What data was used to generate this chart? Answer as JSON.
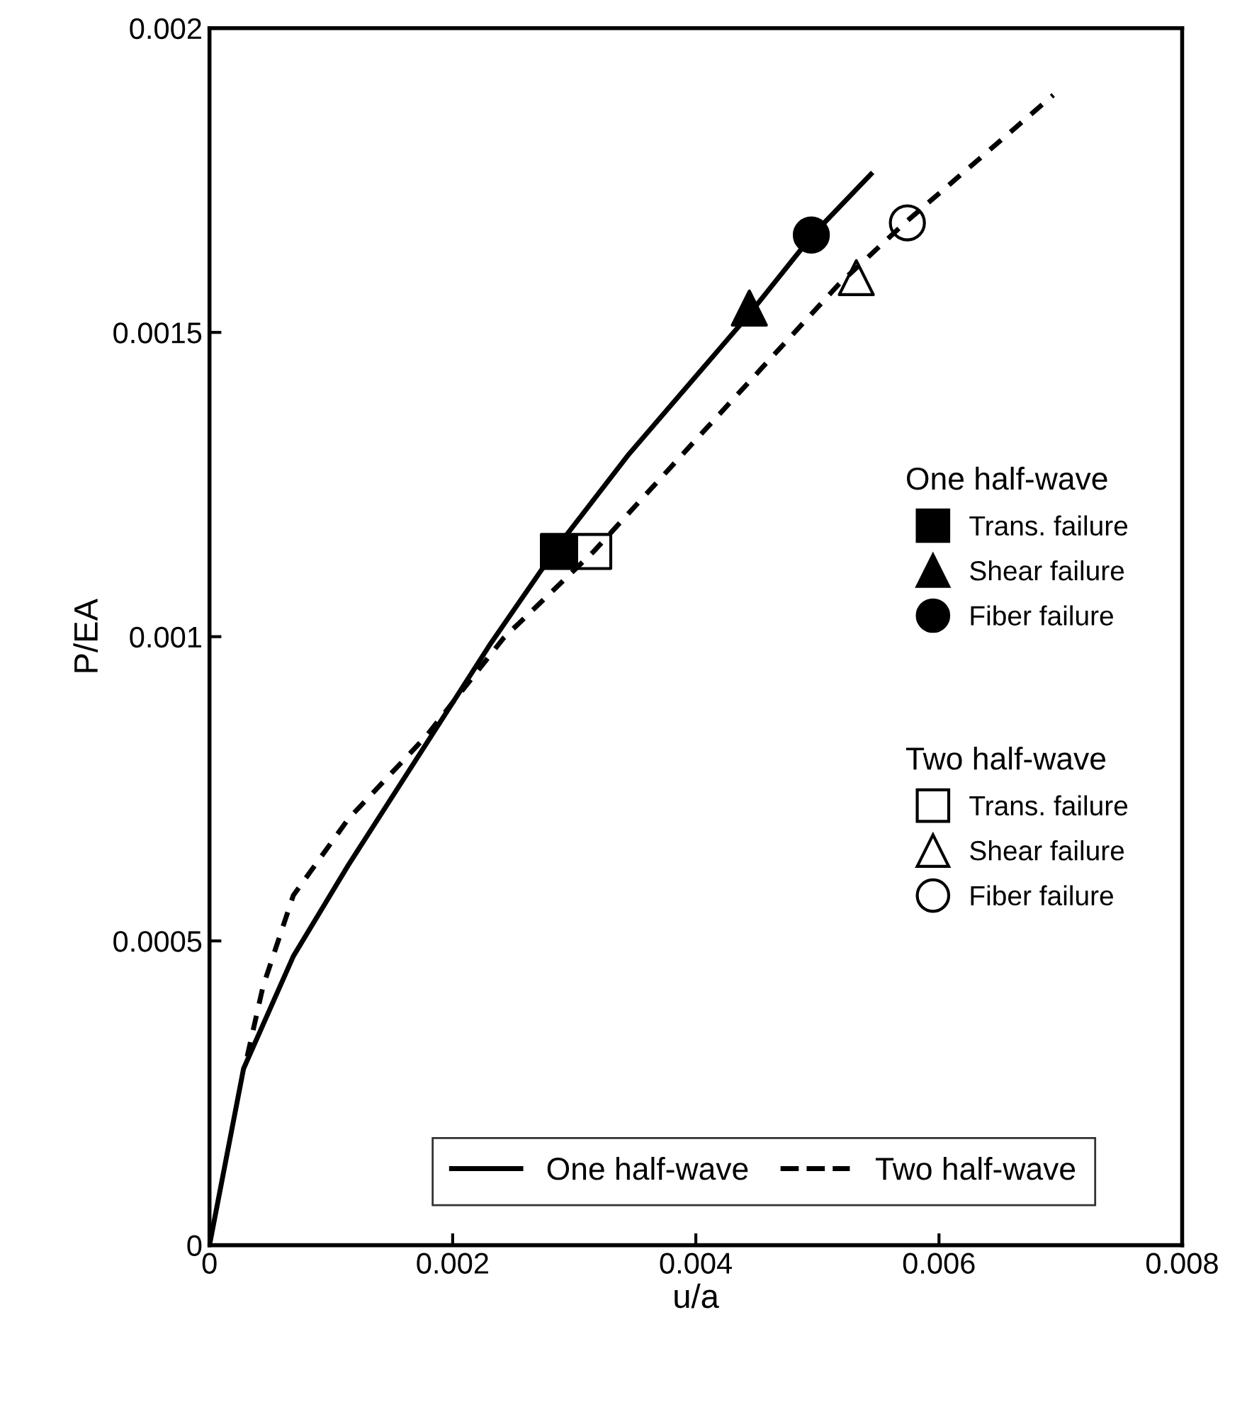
{
  "chart_data": {
    "type": "line",
    "xlabel": "u/a",
    "ylabel": "P/EA",
    "xlim": [
      0,
      0.008
    ],
    "ylim": [
      0,
      0.002
    ],
    "xticks": [
      0,
      0.002,
      0.004,
      0.006,
      0.008
    ],
    "yticks": [
      0,
      0.0005,
      0.001,
      0.0015,
      0.002
    ],
    "grid": false,
    "legend": "right",
    "annotations": [
      "One half-wave",
      "Two half-wave"
    ],
    "series": [
      {
        "name": "One half-wave",
        "color": "#000000",
        "line_style": "solid",
        "marker": "none",
        "x": [
          0,
          0.00028,
          0.00069,
          0.00114,
          0.00178,
          0.0023,
          0.00287,
          0.00345,
          0.00444,
          0.00496,
          0.00544
        ],
        "values": [
          0,
          0.00029,
          0.000475,
          0.000624,
          0.000823,
          0.000985,
          0.00115,
          0.0013,
          0.00153,
          0.00166,
          0.00176
        ]
      },
      {
        "name": "Two half-wave",
        "color": "#000000",
        "line_style": "dashed",
        "marker": "none",
        "x": [
          0.00031,
          0.00044,
          0.00069,
          0.00114,
          0.00178,
          0.00242,
          0.00316,
          0.00403,
          0.00518,
          0.00572,
          0.00694
        ],
        "values": [
          0.00031,
          0.000425,
          0.000575,
          0.0007,
          0.000836,
          0.000998,
          0.00114,
          0.00133,
          0.00158,
          0.00168,
          0.00189
        ]
      },
      {
        "name": "Trans. failure",
        "type": "scatter",
        "color": "#000000",
        "marker": "square",
        "x": [
          0.00287
        ],
        "values": [
          0.00114
        ]
      },
      {
        "name": "Shear failure",
        "type": "scatter",
        "color": "#000000",
        "marker": "triangle",
        "x": [
          0.00444
        ],
        "values": [
          0.00154
        ]
      },
      {
        "name": "Fiber failure",
        "type": "scatter",
        "color": "#000000",
        "marker": "circle",
        "x": [
          0.00495
        ],
        "values": [
          0.00166
        ]
      },
      {
        "name": "Trans. failure",
        "type": "scatter",
        "color": "#ffffff",
        "marker": "square",
        "x": [
          0.00316
        ],
        "values": [
          0.00114
        ]
      },
      {
        "name": "Shear failure",
        "type": "scatter",
        "color": "#ffffff",
        "marker": "triangle",
        "x": [
          0.00532
        ],
        "values": [
          0.00159
        ]
      },
      {
        "name": "Fiber failure",
        "type": "scatter",
        "color": "#ffffff",
        "marker": "circle",
        "x": [
          0.00574
        ],
        "values": [
          0.00168
        ]
      }
    ]
  }
}
